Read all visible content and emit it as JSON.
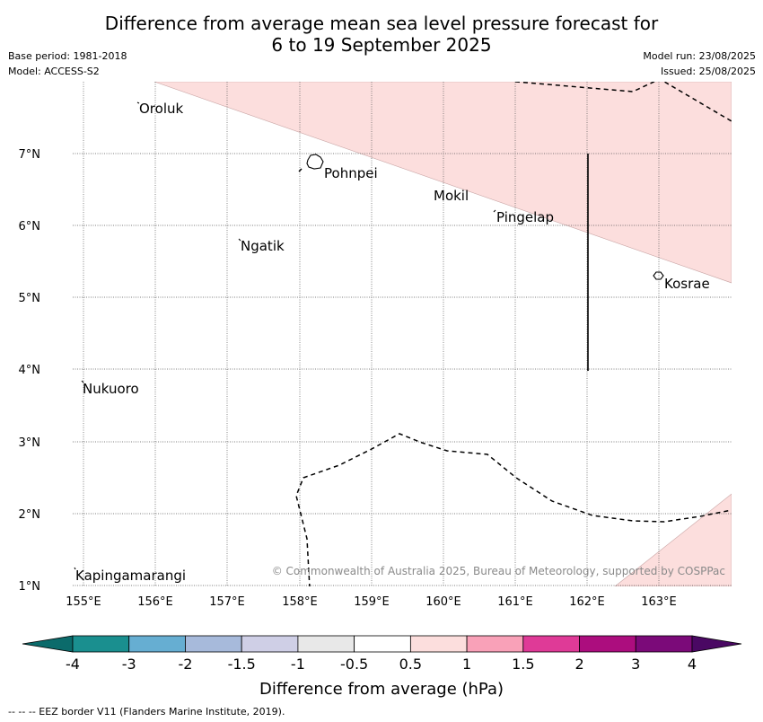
{
  "title": {
    "line1": "Difference from average mean sea level pressure forecast for",
    "line2": "6 to 19 September 2025"
  },
  "meta": {
    "base_period": "Base period: 1981-2018",
    "model": "Model: ACCESS-S2",
    "model_run": "Model run: 23/08/2025",
    "issued": "Issued: 25/08/2025"
  },
  "map": {
    "lon_labels": [
      "155°E",
      "156°E",
      "157°E",
      "158°E",
      "159°E",
      "160°E",
      "161°E",
      "162°E",
      "163°E"
    ],
    "lat_labels": [
      "7°N",
      "6°N",
      "5°N",
      "4°N",
      "3°N",
      "2°N",
      "1°N"
    ],
    "places": [
      {
        "name": "Oroluk"
      },
      {
        "name": "Pohnpei"
      },
      {
        "name": "Mokil"
      },
      {
        "name": "Pingelap"
      },
      {
        "name": "Ngatik"
      },
      {
        "name": "Kosrae"
      },
      {
        "name": "Nukuoro"
      },
      {
        "name": "Kapingamarangi"
      }
    ],
    "positive_fill_color": "#fcdedd",
    "copyright": "© Commonwealth of Australia 2025, Bureau of Meteorology, supported by COSPPac"
  },
  "colorbar": {
    "colors": [
      "#1a8f8f",
      "#66aed2",
      "#a7badb",
      "#cfcfe6",
      "#e8e8e8",
      "#ffffff",
      "#fcdedd",
      "#f9a1b8",
      "#df3a97",
      "#ac0d7e",
      "#7b0a79"
    ],
    "low_extend_color": "#0b6b6b",
    "high_extend_color": "#4a0863",
    "tick_labels": [
      "-4",
      "-3",
      "-2",
      "-1.5",
      "-1",
      "-0.5",
      "0.5",
      "1",
      "1.5",
      "2",
      "3",
      "4"
    ],
    "label": "Difference from average (hPa)"
  },
  "footer": {
    "eez_note": "--  --  -- EEZ border V11 (Flanders Marine Institute, 2019)."
  }
}
